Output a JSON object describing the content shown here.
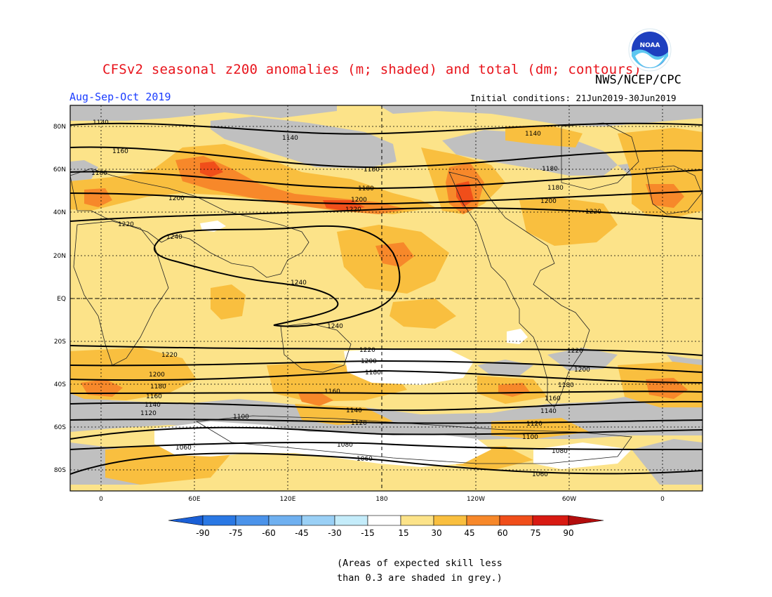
{
  "title": "CFSv2 seasonal z200 anomalies (m; shaded) and total (dm; contours)",
  "agency": "NWS/NCEP/CPC",
  "logo_text": "NOAA",
  "period": "Aug-Sep-Oct 2019",
  "initial_conditions": "Initial conditions: 21Jun2019-30Jun2019",
  "note_line1": "(Areas of expected skill less",
  "note_line2": "than 0.3 are shaded in grey.)",
  "map": {
    "lat_labels": [
      "80N",
      "60N",
      "40N",
      "20N",
      "EQ",
      "20S",
      "40S",
      "60S",
      "80S"
    ],
    "lon_labels": [
      "0",
      "60E",
      "120E",
      "180",
      "120W",
      "60W",
      "0"
    ],
    "colors": {
      "grey_low_skill": "#c0c0c0",
      "anom_15_30": "#fce389",
      "anom_30_45": "#f9bf3f",
      "anom_45_60": "#f7882a",
      "anom_60_75": "#f04e1a",
      "white": "#ffffff"
    },
    "contours": [
      {
        "label": "1140"
      },
      {
        "label": "1160"
      },
      {
        "label": "1180"
      },
      {
        "label": "1200"
      },
      {
        "label": "1220"
      },
      {
        "label": "1240"
      },
      {
        "label": "1220"
      },
      {
        "label": "1200"
      },
      {
        "label": "1180"
      },
      {
        "label": "1160"
      },
      {
        "label": "1140"
      },
      {
        "label": "1120"
      },
      {
        "label": "1100"
      },
      {
        "label": "1080"
      },
      {
        "label": "1060"
      }
    ]
  },
  "colorbar": {
    "ticks": [
      "-90",
      "-75",
      "-60",
      "-45",
      "-30",
      "-15",
      "15",
      "30",
      "45",
      "60",
      "75",
      "90"
    ],
    "colors": [
      "#1a5fd6",
      "#2a78e4",
      "#4b93ea",
      "#6fb0f0",
      "#9ad0f6",
      "#c4ecfa",
      "#ffffff",
      "#fce389",
      "#f9bf3f",
      "#f7882a",
      "#f04e1a",
      "#d81a12",
      "#b30d0d"
    ]
  }
}
